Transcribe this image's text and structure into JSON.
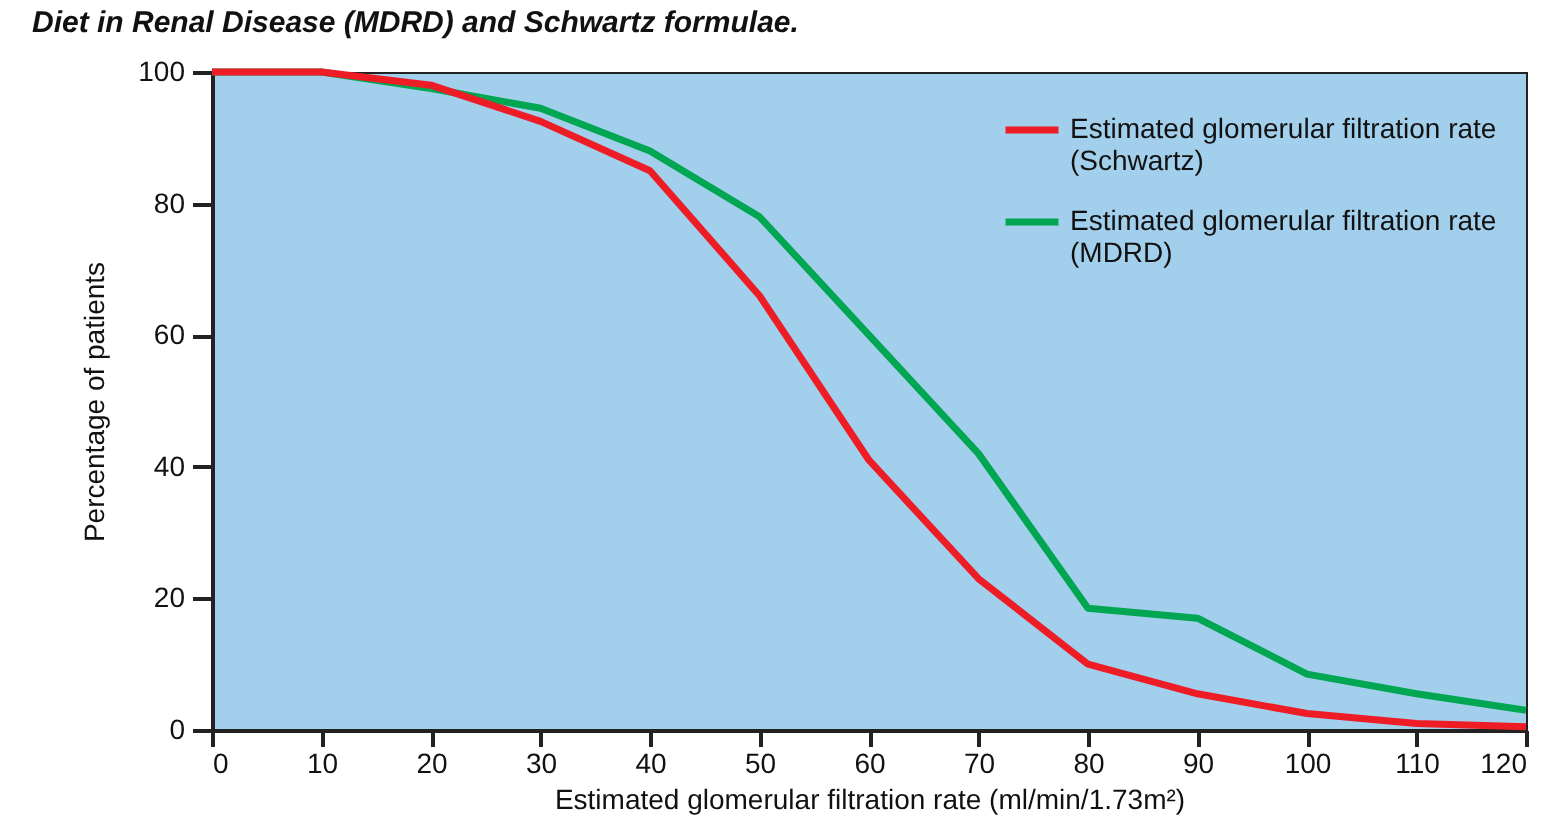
{
  "chart_data": {
    "type": "line",
    "title": "Diet in Renal Disease (MDRD) and Schwartz formulae.",
    "xlabel": "Estimated glomerular filtration rate (ml/min/1.73m²)",
    "ylabel": "Percentage of patients",
    "x": [
      0,
      10,
      20,
      30,
      40,
      50,
      60,
      70,
      80,
      90,
      100,
      110,
      120
    ],
    "series": [
      {
        "name": "Estimated glomerular filtration rate (Schwartz)",
        "color": "#ee1c25",
        "values": [
          100,
          100,
          98,
          92.5,
          85,
          66,
          41,
          23,
          10,
          5.5,
          2.5,
          1,
          0.5
        ]
      },
      {
        "name": "Estimated glomerular filtration rate (MDRD)",
        "color": "#00a651",
        "values": [
          100,
          100,
          97.5,
          94.5,
          88,
          78,
          60,
          42,
          18.5,
          17,
          8.5,
          5.5,
          3
        ]
      }
    ],
    "xlim": [
      0,
      120
    ],
    "xticks": [
      0,
      10,
      20,
      30,
      40,
      50,
      60,
      70,
      80,
      90,
      100,
      110,
      120
    ],
    "ylim": [
      0,
      100
    ],
    "yticks": [
      0,
      20,
      40,
      60,
      80,
      100
    ],
    "grid": false,
    "legend": "top right",
    "marker": "none",
    "line_style": "solid"
  }
}
